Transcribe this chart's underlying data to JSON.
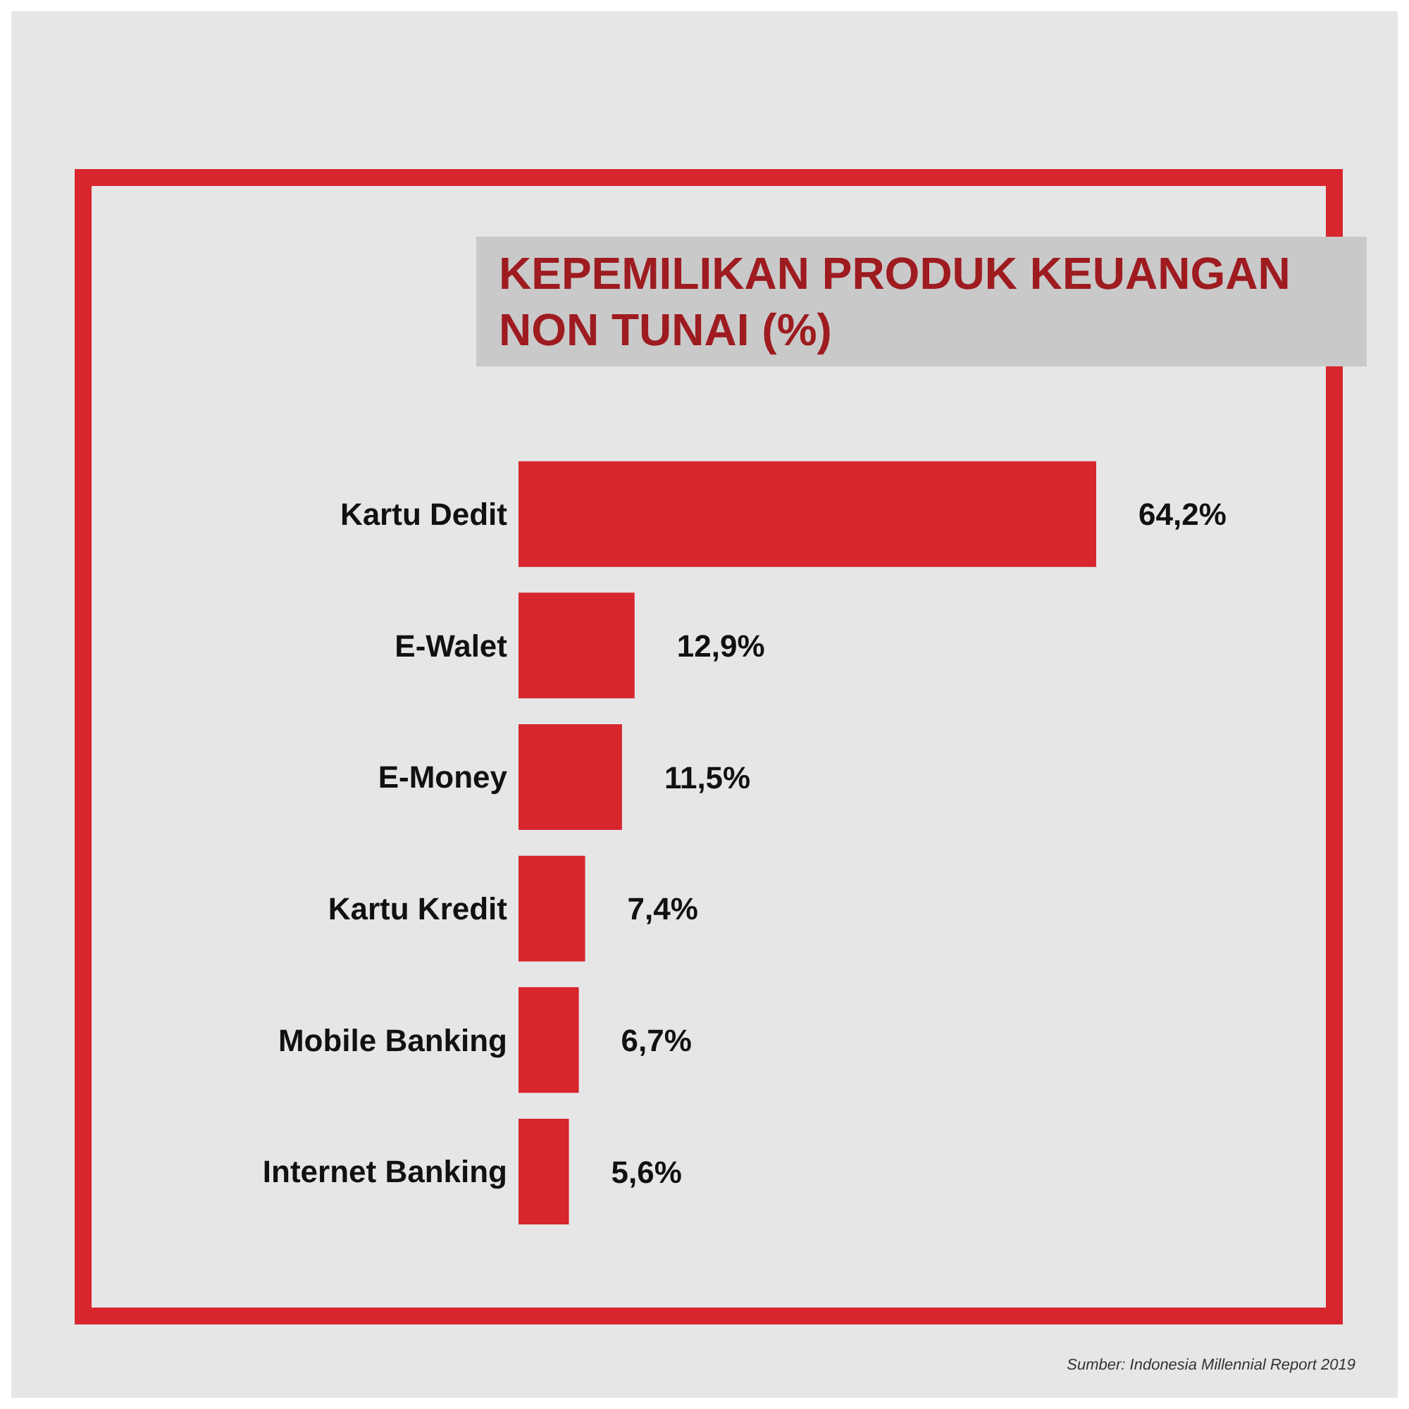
{
  "chart_data": {
    "type": "bar",
    "orientation": "horizontal",
    "title": "KEPEMILIKAN PRODUK KEUANGAN NON TUNAI (%)",
    "categories": [
      "Kartu Dedit",
      "E-Walet",
      "E-Money",
      "Kartu Kredit",
      "Mobile Banking",
      "Internet Banking"
    ],
    "values": [
      64.2,
      12.9,
      11.5,
      7.4,
      6.7,
      5.6
    ],
    "value_labels": [
      "64,2%",
      "12,9%",
      "11,5%",
      "7,4%",
      "6,7%",
      "5,6%"
    ],
    "color": "#d7262e",
    "annotations": [
      "Sumber: Indonesia Millennial Report 2019"
    ]
  }
}
